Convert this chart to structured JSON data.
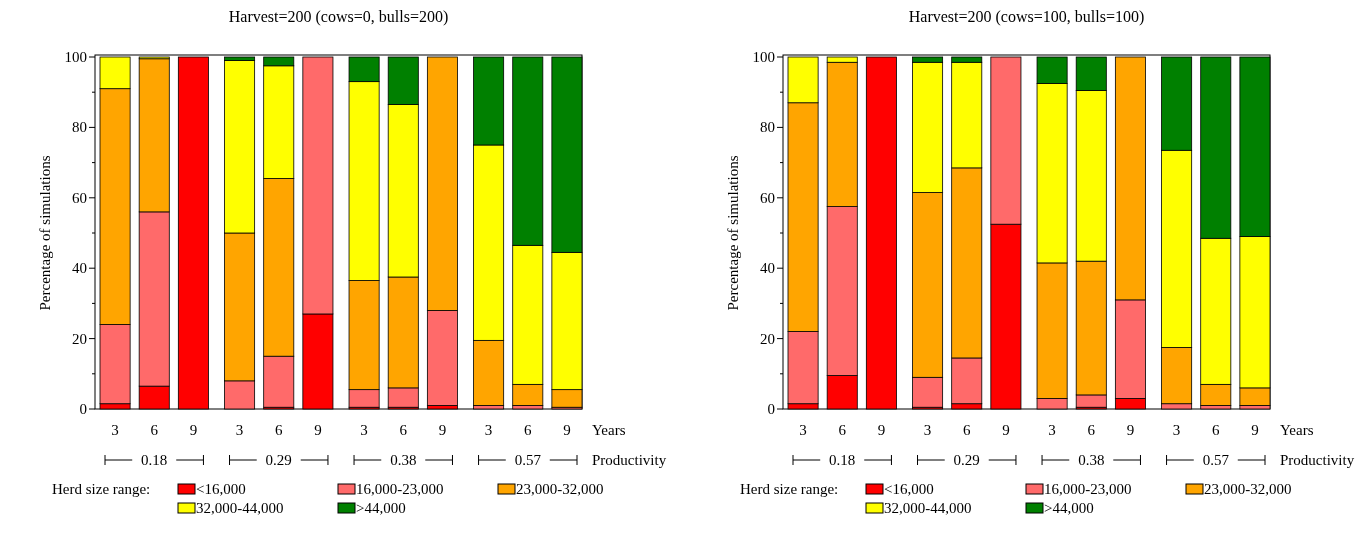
{
  "chart_data": [
    {
      "type": "bar",
      "stacked": true,
      "title": "Harvest=200 (cows=0, bulls=200)",
      "ylabel": "Percentage of simulations",
      "xlabel": "Years",
      "legend_title": "Herd size range:",
      "legend": "bottom",
      "categories": [
        "3",
        "6",
        "9",
        "3",
        "6",
        "9",
        "3",
        "6",
        "9",
        "3",
        "6",
        "9"
      ],
      "annotations": [
        "0.18",
        "0.29",
        "0.38",
        "0.57",
        "Productivity"
      ],
      "ylim": [
        0,
        100
      ],
      "yticks": [
        0,
        {
          "value": 10,
          "label": null
        },
        20,
        {
          "value": 30,
          "label": null
        },
        40,
        {
          "value": 50,
          "label": null
        },
        60,
        {
          "value": 70,
          "label": null
        },
        80,
        {
          "value": 90,
          "label": null
        },
        100
      ],
      "series": [
        {
          "name": "<16,000",
          "color": "#ff0000",
          "values": [
            1.5,
            6.5,
            100,
            0,
            0.5,
            27,
            0.5,
            0.5,
            1,
            0,
            0,
            0
          ]
        },
        {
          "name": "16,000-23,000",
          "color": "#ff6a6a",
          "values": [
            22.5,
            49.5,
            0,
            8,
            14.5,
            73,
            5,
            5.5,
            27,
            1,
            1,
            0.5
          ]
        },
        {
          "name": "23,000-32,000",
          "color": "#ffa500",
          "values": [
            67,
            43.5,
            0,
            42,
            50.5,
            0,
            31,
            31.5,
            72,
            18.5,
            6,
            5
          ]
        },
        {
          "name": "32,000-44,000",
          "color": "#ffff00",
          "values": [
            9,
            0.5,
            0,
            49,
            32,
            0,
            56.5,
            49,
            0,
            55.5,
            39.5,
            39
          ]
        },
        {
          "name": ">44,000",
          "color": "#008000",
          "values": [
            0,
            0,
            0,
            1,
            2.5,
            0,
            7,
            13.5,
            0,
            25,
            53.5,
            55.5
          ]
        }
      ]
    },
    {
      "type": "bar",
      "stacked": true,
      "title": "Harvest=200  (cows=100, bulls=100)",
      "ylabel": "Percentage of simulations",
      "xlabel": "Years",
      "legend_title": "Herd size range:",
      "legend": "bottom",
      "categories": [
        "3",
        "6",
        "9",
        "3",
        "6",
        "9",
        "3",
        "6",
        "9",
        "3",
        "6",
        "9"
      ],
      "annotations": [
        "0.18",
        "0.29",
        "0.38",
        "0.57",
        "Productivity"
      ],
      "ylim": [
        0,
        100
      ],
      "yticks": [
        0,
        {
          "value": 10,
          "label": null
        },
        20,
        {
          "value": 30,
          "label": null
        },
        40,
        {
          "value": 50,
          "label": null
        },
        60,
        {
          "value": 70,
          "label": null
        },
        80,
        {
          "value": 90,
          "label": null
        },
        100
      ],
      "series": [
        {
          "name": "<16,000",
          "color": "#ff0000",
          "values": [
            1.5,
            9.5,
            100,
            0.5,
            1.5,
            52.5,
            0,
            0.5,
            3,
            0,
            0,
            0
          ]
        },
        {
          "name": "16,000-23,000",
          "color": "#ff6a6a",
          "values": [
            20.5,
            48,
            0,
            8.5,
            13,
            47.5,
            3,
            3.5,
            28,
            1.5,
            1,
            1
          ]
        },
        {
          "name": "23,000-32,000",
          "color": "#ffa500",
          "values": [
            65,
            41,
            0,
            52.5,
            54,
            0,
            38.5,
            38,
            69,
            16,
            6,
            5
          ]
        },
        {
          "name": "32,000-44,000",
          "color": "#ffff00",
          "values": [
            13,
            1.5,
            0,
            37,
            30,
            0,
            51,
            48.5,
            0,
            56,
            41.5,
            43
          ]
        },
        {
          "name": ">44,000",
          "color": "#008000",
          "values": [
            0,
            0,
            0,
            1.5,
            1.5,
            0,
            7.5,
            9.5,
            0,
            26.5,
            51.5,
            51
          ]
        }
      ]
    }
  ]
}
